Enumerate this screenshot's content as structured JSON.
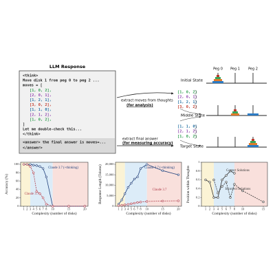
{
  "diagram": {
    "response_title": "LLM Response",
    "response_lines": [
      {
        "text": "<think>",
        "color": "#222222"
      },
      {
        "text": "Move disk 1 from peg 0 to peg 2 ...",
        "color": "#222222"
      },
      {
        "text": "moves = [",
        "color": "#222222"
      },
      {
        "text": "[1, 0, 2],",
        "color": "#2e9e4f"
      },
      {
        "text": "[2, 0, 1],",
        "color": "#8e44ad"
      },
      {
        "text": "[1, 2, 1],",
        "color": "#2471a3"
      },
      {
        "text": "[3, 0, 2],",
        "color": "#c0392b"
      },
      {
        "text": "[1, 1, 0],",
        "color": "#2471a3"
      },
      {
        "text": "[2, 1, 2],",
        "color": "#8e44ad"
      },
      {
        "text": "[1, 0, 2],",
        "color": "#2e9e4f"
      },
      {
        "text": "]",
        "color": "#222222"
      },
      {
        "text": "Let me double-check this...",
        "color": "#222222"
      },
      {
        "text": "</think>",
        "color": "#222222"
      },
      {
        "text": "<answer> the final answer is moves=...",
        "color": "#222222"
      },
      {
        "text": "</answer>",
        "color": "#222222"
      }
    ],
    "moves_label": "extract moves  from thoughts",
    "moves_label_emph": "(for analysis)",
    "answer_label": "extract final answer",
    "answer_label_emph": "(for measuring accuracy)",
    "moves_list": [
      {
        "text": "[1, 0, 2]",
        "color": "#2e9e4f"
      },
      {
        "text": "[2, 0, 1]",
        "color": "#8e44ad"
      },
      {
        "text": "[1, 2, 1]",
        "color": "#2471a3"
      },
      {
        "text": "[3, 0, 2]",
        "color": "#c0392b"
      }
    ],
    "answer_list": [
      {
        "text": "[1, 1, 0]",
        "color": "#2471a3"
      },
      {
        "text": "[2, 1, 2]",
        "color": "#8e44ad"
      },
      {
        "text": "[1, 0, 2]",
        "color": "#2e9e4f"
      }
    ],
    "pegs": [
      "Peg 0",
      "Peg 1",
      "Peg 2"
    ],
    "states": [
      "Initial State",
      "Middle State",
      "Target State"
    ]
  },
  "chart_data": [
    {
      "type": "line",
      "ylabel": "Accuracy (%)",
      "xlabel": "Complexity (number of disks)",
      "x": [
        1,
        2,
        3,
        4,
        5,
        6,
        7,
        8,
        10,
        15,
        20
      ],
      "xlim": [
        0,
        21
      ],
      "xticks": [
        1,
        2,
        3,
        4,
        5,
        6,
        7,
        8,
        10,
        15,
        20
      ],
      "ylim": [
        0,
        105
      ],
      "yticks": [
        0,
        20,
        40,
        60,
        80,
        100
      ],
      "regions": [
        {
          "from": 0,
          "to": 3,
          "color": "#fbf3d5"
        },
        {
          "from": 3,
          "to": 10,
          "color": "#dcecf8"
        },
        {
          "from": 10,
          "to": 21,
          "color": "#f9e0dc"
        }
      ],
      "series": [
        {
          "name": "Claude 3.7 (+thinking)",
          "color": "#1f3f7a",
          "dash": false,
          "values": [
            100,
            100,
            100,
            98,
            97,
            95,
            90,
            70,
            0,
            0,
            0
          ]
        },
        {
          "name": "Claude 3.7",
          "color": "#b03a48",
          "dash": true,
          "values": [
            100,
            100,
            95,
            80,
            35,
            30,
            20,
            5,
            0,
            0,
            0
          ]
        }
      ]
    },
    {
      "type": "line",
      "ylabel": "Response Length (Tokens)",
      "xlabel": "Complexity (number of disks)",
      "x": [
        1,
        2,
        3,
        4,
        5,
        6,
        7,
        8,
        10,
        15,
        20
      ],
      "xlim": [
        0,
        21
      ],
      "xticks": [
        1,
        2,
        3,
        4,
        5,
        6,
        7,
        8,
        10,
        15,
        20
      ],
      "ylim": [
        0,
        21000
      ],
      "yticks": [
        0,
        {
          "value": 5000,
          "label": "5,000"
        },
        {
          "value": 10000,
          "label": "10,000"
        },
        {
          "value": 15000,
          "label": "15,000"
        },
        {
          "value": 20000,
          "label": "20,000"
        }
      ],
      "regions": [
        {
          "from": 0,
          "to": 3,
          "color": "#fbf3d5"
        },
        {
          "from": 3,
          "to": 10,
          "color": "#dcecf8"
        },
        {
          "from": 10,
          "to": 21,
          "color": "#f9e0dc"
        }
      ],
      "series": [
        {
          "name": "Claude 3.7 (+thinking)",
          "color": "#1f3f7a",
          "dash": false,
          "values": [
            1000,
            3000,
            6000,
            9000,
            11000,
            13000,
            14000,
            18000,
            20000,
            17000,
            15000
          ]
        },
        {
          "name": "Claude 3.7",
          "color": "#b03a48",
          "dash": true,
          "values": [
            300,
            500,
            700,
            900,
            1200,
            1500,
            1800,
            2000,
            2300,
            2500,
            2600
          ]
        }
      ]
    },
    {
      "type": "line",
      "ylabel": "Position within Thoughts",
      "xlabel": "Complexity (number of disks)",
      "xlim": [
        0,
        16
      ],
      "xticks": [
        1,
        2,
        3,
        4,
        5,
        6,
        7,
        8,
        10,
        15
      ],
      "ylim": [
        0,
        1
      ],
      "yticks": [
        0,
        0.2,
        0.4,
        0.6,
        0.8,
        1
      ],
      "regions": [
        {
          "from": 0,
          "to": 3,
          "color": "#fbf3d5"
        },
        {
          "from": 3,
          "to": 8,
          "color": "#dcecf8"
        },
        {
          "from": 8,
          "to": 16,
          "color": "#f9e0dc"
        }
      ],
      "series": [
        {
          "name": "Correct Solutions",
          "color": "#333333",
          "dash": false,
          "x": [
            1,
            2,
            3,
            4,
            5,
            6,
            7,
            8
          ],
          "values": [
            0.6,
            0.55,
            0.2,
            0.2,
            0.6,
            0.7,
            0.8,
            0.75
          ]
        },
        {
          "name": "Incorrect Solutions",
          "color": "#333333",
          "dash": true,
          "x": [
            3,
            4,
            5,
            6,
            7,
            8,
            10,
            15
          ],
          "values": [
            0.6,
            0.3,
            0.45,
            0.55,
            0.2,
            0.5,
            0.35,
            0.1
          ]
        }
      ]
    }
  ]
}
